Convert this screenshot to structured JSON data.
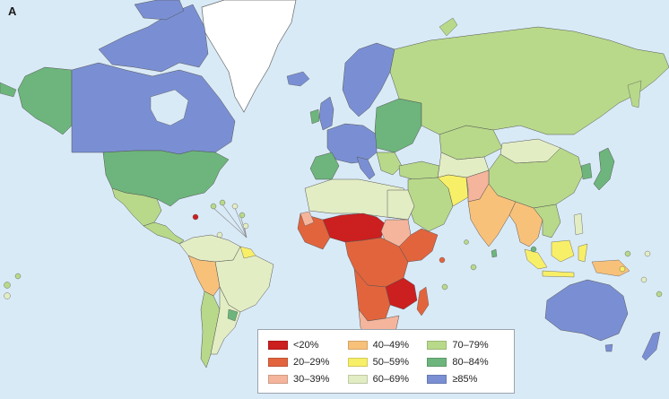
{
  "panel_label": "A",
  "legend": {
    "items": [
      {
        "label": "<20%",
        "color": "#cc1f1f"
      },
      {
        "label": "20–29%",
        "color": "#e2643d"
      },
      {
        "label": "30–39%",
        "color": "#f4b59c"
      },
      {
        "label": "40–49%",
        "color": "#f8c17a"
      },
      {
        "label": "50–59%",
        "color": "#f8ef68"
      },
      {
        "label": "60–69%",
        "color": "#e3edc4"
      },
      {
        "label": "70–79%",
        "color": "#b8d98a"
      },
      {
        "label": "80–84%",
        "color": "#6db57c"
      },
      {
        "label": "≥85%",
        "color": "#7a8fd3"
      }
    ]
  },
  "colors": {
    "ocean": "#d9eaf7",
    "no_data": "#ffffff",
    "border": "#555555"
  }
}
